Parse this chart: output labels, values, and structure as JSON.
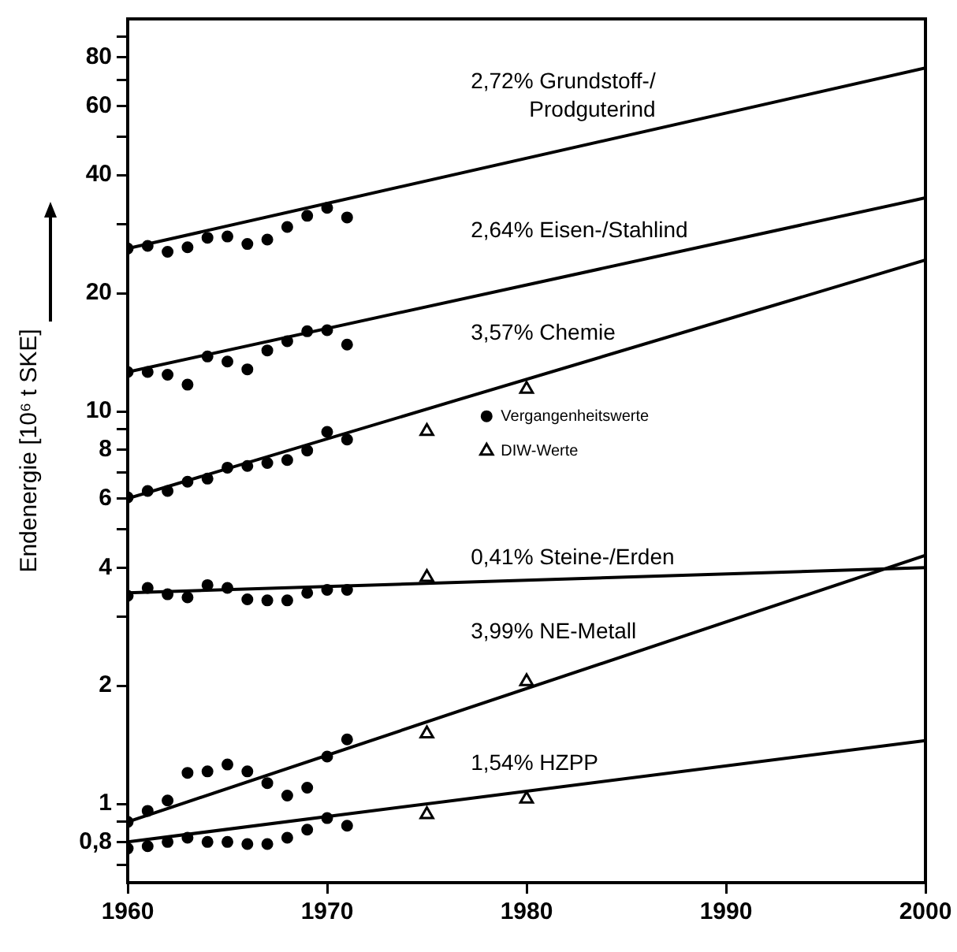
{
  "chart_data": {
    "type": "line",
    "ylabel": "Endenergie [10⁶ t SKE]",
    "xlim": [
      1960,
      2000
    ],
    "xticks": [
      1960,
      1970,
      1980,
      1990,
      2000
    ],
    "ylim": [
      0.63,
      100
    ],
    "log": "y",
    "yticks": [
      {
        "value": 0.7,
        "label": null
      },
      {
        "value": 0.8,
        "label": "0,8"
      },
      {
        "value": 0.9,
        "label": null
      },
      1,
      2,
      {
        "value": 3,
        "label": null
      },
      4,
      {
        "value": 5,
        "label": null
      },
      6,
      {
        "value": 7,
        "label": null
      },
      8,
      {
        "value": 9,
        "label": null
      },
      10,
      20,
      {
        "value": 30,
        "label": null
      },
      40,
      {
        "value": 50,
        "label": null
      },
      60,
      {
        "value": 70,
        "label": null
      },
      80,
      {
        "value": 90,
        "label": null
      }
    ],
    "grid": false,
    "legend": "right",
    "series": [
      {
        "name": "2,72% Grundstoff-/\nProdguterind",
        "color": "#000000",
        "marker": "none",
        "x": [
          1960,
          2000
        ],
        "values": [
          26,
          75
        ]
      },
      {
        "name": "2,64% Eisen-/Stahlind",
        "color": "#000000",
        "marker": "none",
        "x": [
          1960,
          2000
        ],
        "values": [
          12.6,
          35
        ]
      },
      {
        "name": "3,57% Chemie",
        "color": "#000000",
        "marker": "none",
        "x": [
          1960,
          2000
        ],
        "values": [
          6,
          24.3
        ]
      },
      {
        "name": "0,41% Steine-/Erden",
        "color": "#000000",
        "marker": "none",
        "x": [
          1960,
          2000
        ],
        "values": [
          3.45,
          4
        ]
      },
      {
        "name": "3,99% NE-Metall",
        "color": "#000000",
        "marker": "none",
        "x": [
          1960,
          2000
        ],
        "values": [
          0.9,
          4.3
        ]
      },
      {
        "name": "1,54% HZPP",
        "color": "#000000",
        "marker": "none",
        "x": [
          1960,
          2000
        ],
        "values": [
          0.8,
          1.45
        ]
      },
      {
        "type": "scatter",
        "name": "Vergangenheitswerte",
        "color": "#000000",
        "marker": "circle",
        "x": [
          1960,
          1961,
          1962,
          1963,
          1964,
          1965,
          1966,
          1967,
          1968,
          1969,
          1970,
          1971,
          1960,
          1961,
          1962,
          1963,
          1964,
          1965,
          1966,
          1967,
          1968,
          1969,
          1970,
          1971,
          1960,
          1961,
          1962,
          1963,
          1964,
          1965,
          1966,
          1967,
          1968,
          1969,
          1970,
          1971,
          1960,
          1961,
          1962,
          1963,
          1964,
          1965,
          1966,
          1967,
          1968,
          1969,
          1970,
          1971,
          1960,
          1961,
          1962,
          1963,
          1964,
          1965,
          1966,
          1967,
          1968,
          1969,
          1970,
          1971,
          1960,
          1961,
          1962,
          1963,
          1964,
          1965,
          1966,
          1967,
          1968,
          1969,
          1970,
          1971
        ],
        "values": [
          26.0,
          26.4,
          25.5,
          26.2,
          27.7,
          27.9,
          26.7,
          27.4,
          29.5,
          31.5,
          33.0,
          31.2,
          12.6,
          12.6,
          12.4,
          11.7,
          13.8,
          13.4,
          12.8,
          14.3,
          15.1,
          16.0,
          16.1,
          14.8,
          6.04,
          6.27,
          6.27,
          6.62,
          6.74,
          7.19,
          7.26,
          7.39,
          7.52,
          7.95,
          8.87,
          8.48,
          3.39,
          3.55,
          3.42,
          3.36,
          3.61,
          3.55,
          3.32,
          3.3,
          3.3,
          3.45,
          3.51,
          3.51,
          0.9,
          0.96,
          1.02,
          1.2,
          1.21,
          1.26,
          1.21,
          1.13,
          1.05,
          1.1,
          1.32,
          1.46,
          0.77,
          0.78,
          0.8,
          0.82,
          0.8,
          0.8,
          0.79,
          0.79,
          0.82,
          0.86,
          0.92,
          0.88
        ]
      },
      {
        "type": "scatter",
        "name": "DIW-Werte",
        "color": "#000000",
        "marker": "triangle",
        "x": [
          1975,
          1980,
          1975,
          1975,
          1980,
          1975,
          1980
        ],
        "values": [
          8.9,
          11.4,
          3.78,
          1.51,
          2.05,
          0.94,
          1.03
        ]
      }
    ]
  }
}
